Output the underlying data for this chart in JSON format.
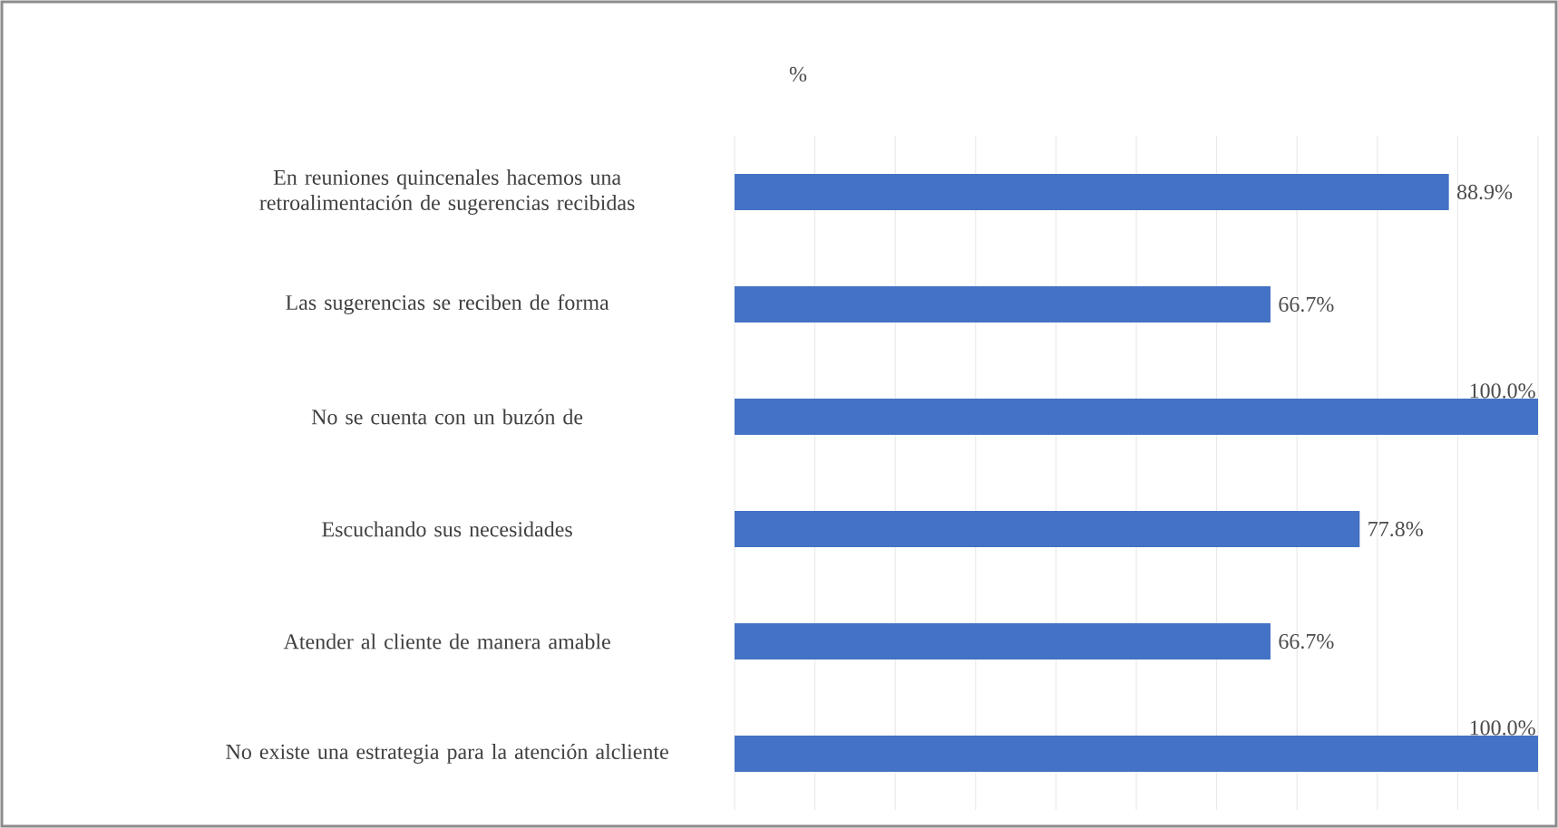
{
  "chart_data": {
    "type": "bar",
    "orientation": "horizontal",
    "title": "%",
    "categories": [
      "En reuniones quincenales hacemos una retroalimentación de sugerencias recibidas",
      "Las sugerencias se reciben de forma",
      "No se cuenta con un buzón de",
      "Escuchando sus necesidades",
      "Atender al cliente de manera amable",
      "No existe una estrategia para la atención alcliente"
    ],
    "values": [
      88.9,
      66.7,
      100,
      77.8,
      66.7,
      100
    ],
    "value_labels": [
      "88.9%",
      "66.7%",
      "100.0%",
      "77.8%",
      "66.7%",
      "100.0%"
    ],
    "color": "#4472c4",
    "xlim": [
      0,
      100
    ],
    "xticks": [
      {
        "value": 0,
        "label": null
      },
      {
        "value": 10,
        "label": null
      },
      {
        "value": 20,
        "label": null
      },
      {
        "value": 30,
        "label": null
      },
      {
        "value": 40,
        "label": null
      },
      {
        "value": 50,
        "label": null
      },
      {
        "value": 60,
        "label": null
      },
      {
        "value": 70,
        "label": null
      },
      {
        "value": 80,
        "label": null
      },
      {
        "value": 90,
        "label": null
      },
      {
        "value": 100,
        "label": null
      }
    ],
    "grid": "x",
    "tick_labels": "y"
  }
}
